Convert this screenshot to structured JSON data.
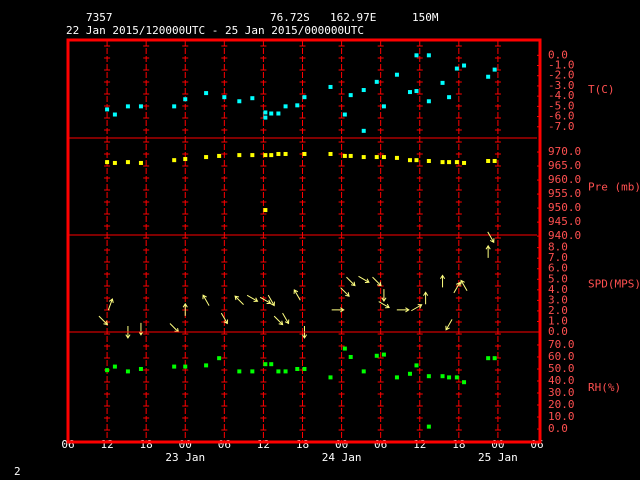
{
  "header": {
    "station": "7357",
    "lat": "76.72S",
    "lon": "162.97E",
    "elev": "150M",
    "period": "22 Jan 2015/120000UTC - 25 Jan 2015/000000UTC"
  },
  "page_number": "2",
  "chart_data": [
    {
      "type": "scatter",
      "ylabel": "T(C)",
      "color": "#00ffff",
      "xlim": [
        0,
        72
      ],
      "ylim": [
        -8.1,
        1.5
      ],
      "yticks": [
        {
          "value": 0,
          "label": "0.0"
        },
        {
          "value": -1,
          "label": "-1.0"
        },
        {
          "value": -2,
          "label": "-2.0"
        },
        {
          "value": -3,
          "label": "-3.0"
        },
        {
          "value": -4,
          "label": "-4.0"
        },
        {
          "value": -5,
          "label": "-5.0"
        },
        {
          "value": -6,
          "label": "-6.0"
        },
        {
          "value": -7,
          "label": "-7.0"
        }
      ],
      "x": [
        6,
        7.2,
        9.2,
        11.2,
        16.3,
        18,
        21.2,
        24,
        26.3,
        28.3,
        30.3,
        30.3,
        31.2,
        32.3,
        33.4,
        35.2,
        36.3,
        40.3,
        42.5,
        43.4,
        45.4,
        45.4,
        47.4,
        48.5,
        50.5,
        52.5,
        53.5,
        53.5,
        55.4,
        55.4,
        57.5,
        58.5,
        59.7,
        60.8,
        64.5,
        65.5
      ],
      "values": [
        -5.3,
        -5.8,
        -5.0,
        -5.0,
        -5.0,
        -4.3,
        -3.7,
        -4.1,
        -4.5,
        -4.2,
        -6.1,
        -5.6,
        -5.7,
        -5.7,
        -5.0,
        -4.9,
        -4.1,
        -3.1,
        -5.8,
        -3.9,
        -3.4,
        -7.4,
        -2.6,
        -5.0,
        -1.9,
        -3.6,
        -3.5,
        0,
        0,
        -4.5,
        -2.7,
        -4.1,
        -1.3,
        -1.0,
        -2.1,
        -1.4
      ]
    },
    {
      "type": "scatter",
      "ylabel": "Pre (mb)",
      "color": "#ffff00",
      "xlim": [
        0,
        72
      ],
      "ylim": [
        940.4,
        975
      ],
      "yticks": [
        {
          "value": 970,
          "label": "970.0"
        },
        {
          "value": 965,
          "label": "965.0"
        },
        {
          "value": 960,
          "label": "960.0"
        },
        {
          "value": 955,
          "label": "955.0"
        },
        {
          "value": 950,
          "label": "950.0"
        },
        {
          "value": 945,
          "label": "945.0"
        },
        {
          "value": 940,
          "label": "940.0"
        }
      ],
      "x": [
        6,
        7.2,
        9.2,
        11.2,
        16.3,
        18,
        21.2,
        23.2,
        26.3,
        28.3,
        30.3,
        31.2,
        32.3,
        33.4,
        36.3,
        40.3,
        42.5,
        43.4,
        45.4,
        47.4,
        48.5,
        50.5,
        52.5,
        53.5,
        55.4,
        57.5,
        58.5,
        59.7,
        60.8,
        64.5,
        65.5,
        30.3
      ],
      "values": [
        966.4,
        966.1,
        966.4,
        966.1,
        967.1,
        967.5,
        968.2,
        968.6,
        968.9,
        968.9,
        968.9,
        968.9,
        969.3,
        969.3,
        969.3,
        969.3,
        968.6,
        968.6,
        968.2,
        968.2,
        968.2,
        967.9,
        967.1,
        967.1,
        966.8,
        966.4,
        966.4,
        966.4,
        966.1,
        966.8,
        966.8,
        949.3
      ]
    },
    {
      "type": "vector",
      "ylabel": "SPD(MPS)",
      "color": "#ffff80",
      "xlim": [
        0,
        72
      ],
      "ylim": [
        0,
        9.2
      ],
      "yticks": [
        {
          "value": 8,
          "label": "8.0"
        },
        {
          "value": 7,
          "label": "7.0"
        },
        {
          "value": 6,
          "label": "6.0"
        },
        {
          "value": 5,
          "label": "5.0"
        },
        {
          "value": 4,
          "label": "4.0"
        },
        {
          "value": 3,
          "label": "3.0"
        },
        {
          "value": 2,
          "label": "2.0"
        },
        {
          "value": 1,
          "label": "1.0"
        },
        {
          "value": 0,
          "label": "0.0"
        }
      ],
      "x": [
        5.4,
        6.5,
        9.2,
        11.2,
        16.3,
        18,
        21.2,
        24,
        26.3,
        28.3,
        30.3,
        31.2,
        32.3,
        33.4,
        35.2,
        36.3,
        41.4,
        42.5,
        43.4,
        45.4,
        47.4,
        48.5,
        48.5,
        51.4,
        53.5,
        54.9,
        57.5,
        58.5,
        59.7,
        60.8,
        64.5,
        64.9
      ],
      "values": [
        1.1,
        2.6,
        0,
        0.3,
        0.4,
        2.1,
        3.0,
        1.3,
        3.0,
        3.2,
        3.0,
        3.0,
        1.1,
        1.3,
        3.5,
        0,
        2.1,
        3.8,
        4.8,
        5.0,
        4.8,
        3.5,
        2.6,
        2.1,
        2.3,
        3.2,
        4.8,
        0.7,
        4.2,
        4.4,
        7.6,
        9.0
      ],
      "directions": [
        135,
        20,
        180,
        180,
        135,
        0,
        330,
        150,
        315,
        120,
        120,
        150,
        135,
        150,
        330,
        180,
        90,
        135,
        135,
        120,
        135,
        180,
        120,
        90,
        60,
        0,
        0,
        210,
        30,
        330,
        0,
        150
      ]
    },
    {
      "type": "scatter",
      "ylabel": "RH(%)",
      "color": "#00ff00",
      "xlim": [
        0,
        72
      ],
      "ylim": [
        -10.8,
        80.8
      ],
      "yticks": [
        {
          "value": 70,
          "label": "70.0"
        },
        {
          "value": 60,
          "label": "60.0"
        },
        {
          "value": 50,
          "label": "50.0"
        },
        {
          "value": 40,
          "label": "40.0"
        },
        {
          "value": 30,
          "label": "30.0"
        },
        {
          "value": 20,
          "label": "20.0"
        },
        {
          "value": 10,
          "label": "10.0"
        },
        {
          "value": 0,
          "label": "0.0"
        }
      ],
      "xticks": [
        {
          "value": 0,
          "label": "06"
        },
        {
          "value": 6,
          "label": "12"
        },
        {
          "value": 12,
          "label": "18"
        },
        {
          "value": 18,
          "label": "00"
        },
        {
          "value": 24,
          "label": "06"
        },
        {
          "value": 30,
          "label": "12"
        },
        {
          "value": 36,
          "label": "18"
        },
        {
          "value": 42,
          "label": "00"
        },
        {
          "value": 48,
          "label": "06"
        },
        {
          "value": 54,
          "label": "12"
        },
        {
          "value": 60,
          "label": "18"
        },
        {
          "value": 66,
          "label": "00"
        },
        {
          "value": 72,
          "label": "06"
        }
      ],
      "date_labels": [
        {
          "value": 18,
          "label": "23 Jan"
        },
        {
          "value": 42,
          "label": "24 Jan"
        },
        {
          "value": 66,
          "label": "25 Jan"
        }
      ],
      "x": [
        6,
        7.2,
        9.2,
        11.2,
        16.3,
        18,
        21.2,
        23.2,
        26.3,
        28.3,
        30.3,
        31.2,
        32.3,
        33.4,
        35.2,
        36.3,
        40.3,
        42.5,
        43.4,
        45.4,
        47.4,
        48.5,
        50.5,
        52.5,
        53.5,
        55.4,
        55.4,
        57.5,
        58.5,
        59.7,
        60.8,
        64.5,
        65.5
      ],
      "values": [
        49,
        52,
        48,
        50,
        52,
        52,
        53,
        59,
        48,
        48,
        54,
        54,
        48,
        48,
        50,
        50,
        43,
        67,
        60,
        48,
        61,
        62,
        43,
        46,
        53,
        2,
        44,
        44,
        43,
        43,
        39,
        59,
        59
      ]
    }
  ]
}
